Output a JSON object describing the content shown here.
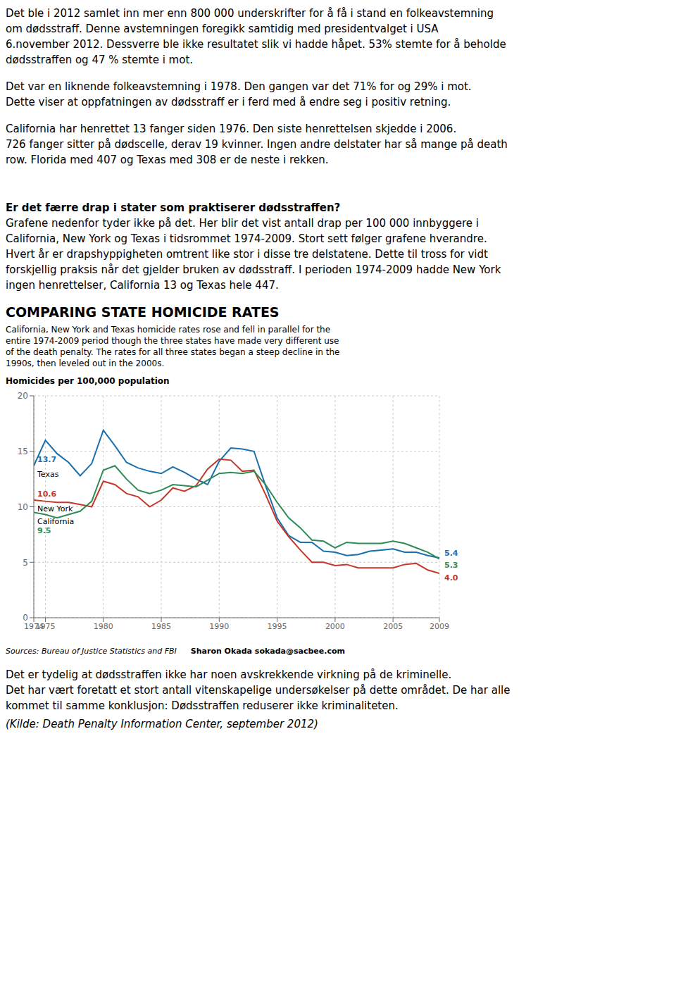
{
  "page": {
    "paragraphs_before": [
      [
        "Det ble i 2012 samlet inn mer enn 800 000 underskrifter for å få i stand en folkeavstemning",
        "om dødsstraff. Denne avstemningen foregikk samtidig med presidentvalget i USA",
        "6.november 2012. Dessverre ble ikke resultatet slik vi hadde håpet. 53% stemte for å beholde",
        "dødsstraffen og  47 % stemte i mot."
      ],
      [
        "Det var en liknende folkeavstemning i 1978.  Den gangen var det 71% for og 29%  i mot.",
        "Dette viser at oppfatningen av dødsstraff er i ferd med å endre seg i positiv retning."
      ],
      [
        "California har henrettet 13 fanger siden 1976. Den siste henrettelsen skjedde i 2006.",
        "726 fanger sitter på dødscelle, derav 19 kvinner. Ingen andre delstater har så mange på death",
        "row. Florida med 407 og Texas med 308 er de neste i rekken."
      ]
    ],
    "heading": "Er det færre drap i stater som praktiserer dødsstraffen?",
    "paragraph_after_heading": [
      "Grafene nedenfor tyder ikke på det. Her blir det vist antall drap per 100 000 innbyggere i",
      "California, New York og Texas i tidsrommet 1974-2009. Stort sett følger grafene hverandre.",
      "Hvert år er drapshyppigheten omtrent like stor i disse tre delstatene. Dette til tross for vidt",
      "forskjellig praksis når det gjelder bruken av dødsstraff. I perioden 1974-2009 hadde New York",
      "ingen henrettelser, California 13 og Texas hele 447."
    ],
    "paragraph_after_chart": [
      "Det er tydelig at dødsstraffen ikke har noen avskrekkende virkning på de kriminelle.",
      "Det har vært foretatt et stort antall vitenskapelige undersøkelser på dette området. De har alle",
      "kommet til samme konklusjon: Dødsstraffen reduserer ikke kriminaliteten."
    ],
    "source_note": "(Kilde: Death Penalty Information Center, september 2012)"
  },
  "chart_data": {
    "type": "line",
    "title": "COMPARING STATE HOMICIDE RATES",
    "subtitle": "California, New York and Texas homicide rates rose and fell in parallel for the\nentire 1974-2009 period though the three states have made very different use\nof the death penalty. The rates for all three states began a steep decline in the\n1990s, then leveled out in the 2000s.",
    "ylabel": "Homicides per 100,000 population",
    "sources": "Sources: Bureau of Justice Statistics and FBI",
    "credit": "Sharon Okada  sokada@sacbee.com",
    "x": [
      1974,
      1975,
      1976,
      1977,
      1978,
      1979,
      1980,
      1981,
      1982,
      1983,
      1984,
      1985,
      1986,
      1987,
      1988,
      1989,
      1990,
      1991,
      1992,
      1993,
      1994,
      1995,
      1996,
      1997,
      1998,
      1999,
      2000,
      2001,
      2002,
      2003,
      2004,
      2005,
      2006,
      2007,
      2008,
      2009
    ],
    "series": [
      {
        "name": "Texas",
        "color": "#1a6fad",
        "values": [
          13.7,
          16.0,
          14.8,
          14.0,
          12.8,
          13.9,
          16.9,
          15.5,
          14.0,
          13.5,
          13.2,
          13.0,
          13.6,
          13.1,
          12.5,
          12.0,
          14.1,
          15.3,
          15.2,
          15.0,
          11.9,
          9.0,
          7.4,
          6.8,
          6.8,
          6.0,
          5.9,
          5.6,
          5.7,
          6.0,
          6.1,
          6.2,
          5.9,
          5.9,
          5.6,
          5.4
        ]
      },
      {
        "name": "New York",
        "color": "#c0392b",
        "values": [
          10.6,
          10.5,
          10.4,
          10.4,
          10.2,
          10.0,
          12.3,
          12.0,
          11.2,
          10.9,
          10.0,
          10.6,
          11.7,
          11.4,
          11.9,
          13.4,
          14.3,
          14.2,
          13.2,
          13.3,
          11.1,
          8.7,
          7.3,
          6.1,
          5.0,
          5.0,
          4.7,
          4.8,
          4.5,
          4.5,
          4.5,
          4.5,
          4.8,
          4.9,
          4.3,
          4.0
        ]
      },
      {
        "name": "California",
        "color": "#2e8b57",
        "values": [
          9.5,
          9.3,
          9.0,
          9.3,
          9.6,
          10.5,
          13.3,
          13.7,
          12.5,
          11.5,
          11.2,
          11.5,
          12.0,
          11.9,
          11.8,
          12.4,
          13.0,
          13.1,
          13.0,
          13.2,
          12.0,
          10.4,
          9.0,
          8.1,
          7.0,
          6.9,
          6.3,
          6.8,
          6.7,
          6.7,
          6.7,
          6.9,
          6.7,
          6.3,
          5.9,
          5.3
        ]
      }
    ],
    "xlim": [
      1974,
      2009
    ],
    "xticks": [
      1974,
      1975,
      1980,
      1985,
      1990,
      1995,
      2000,
      2005,
      2009
    ],
    "ylim": [
      0,
      20
    ],
    "yticks": [
      0,
      5,
      10,
      15,
      20
    ],
    "grid": true,
    "annotations": [
      {
        "text": "13.7",
        "series": "Texas",
        "x": 1974,
        "y": 13.7
      },
      {
        "text": "10.6",
        "series": "New York",
        "x": 1974,
        "y": 10.6
      },
      {
        "text": "9.5",
        "series": "California",
        "x": 1974,
        "y": 9.5
      },
      {
        "text": "5.4",
        "series": "Texas",
        "x": 2009,
        "y": 5.4
      },
      {
        "text": "5.3",
        "series": "California",
        "x": 2009,
        "y": 5.3
      },
      {
        "text": "4.0",
        "series": "New York",
        "x": 2009,
        "y": 4.0
      }
    ]
  }
}
